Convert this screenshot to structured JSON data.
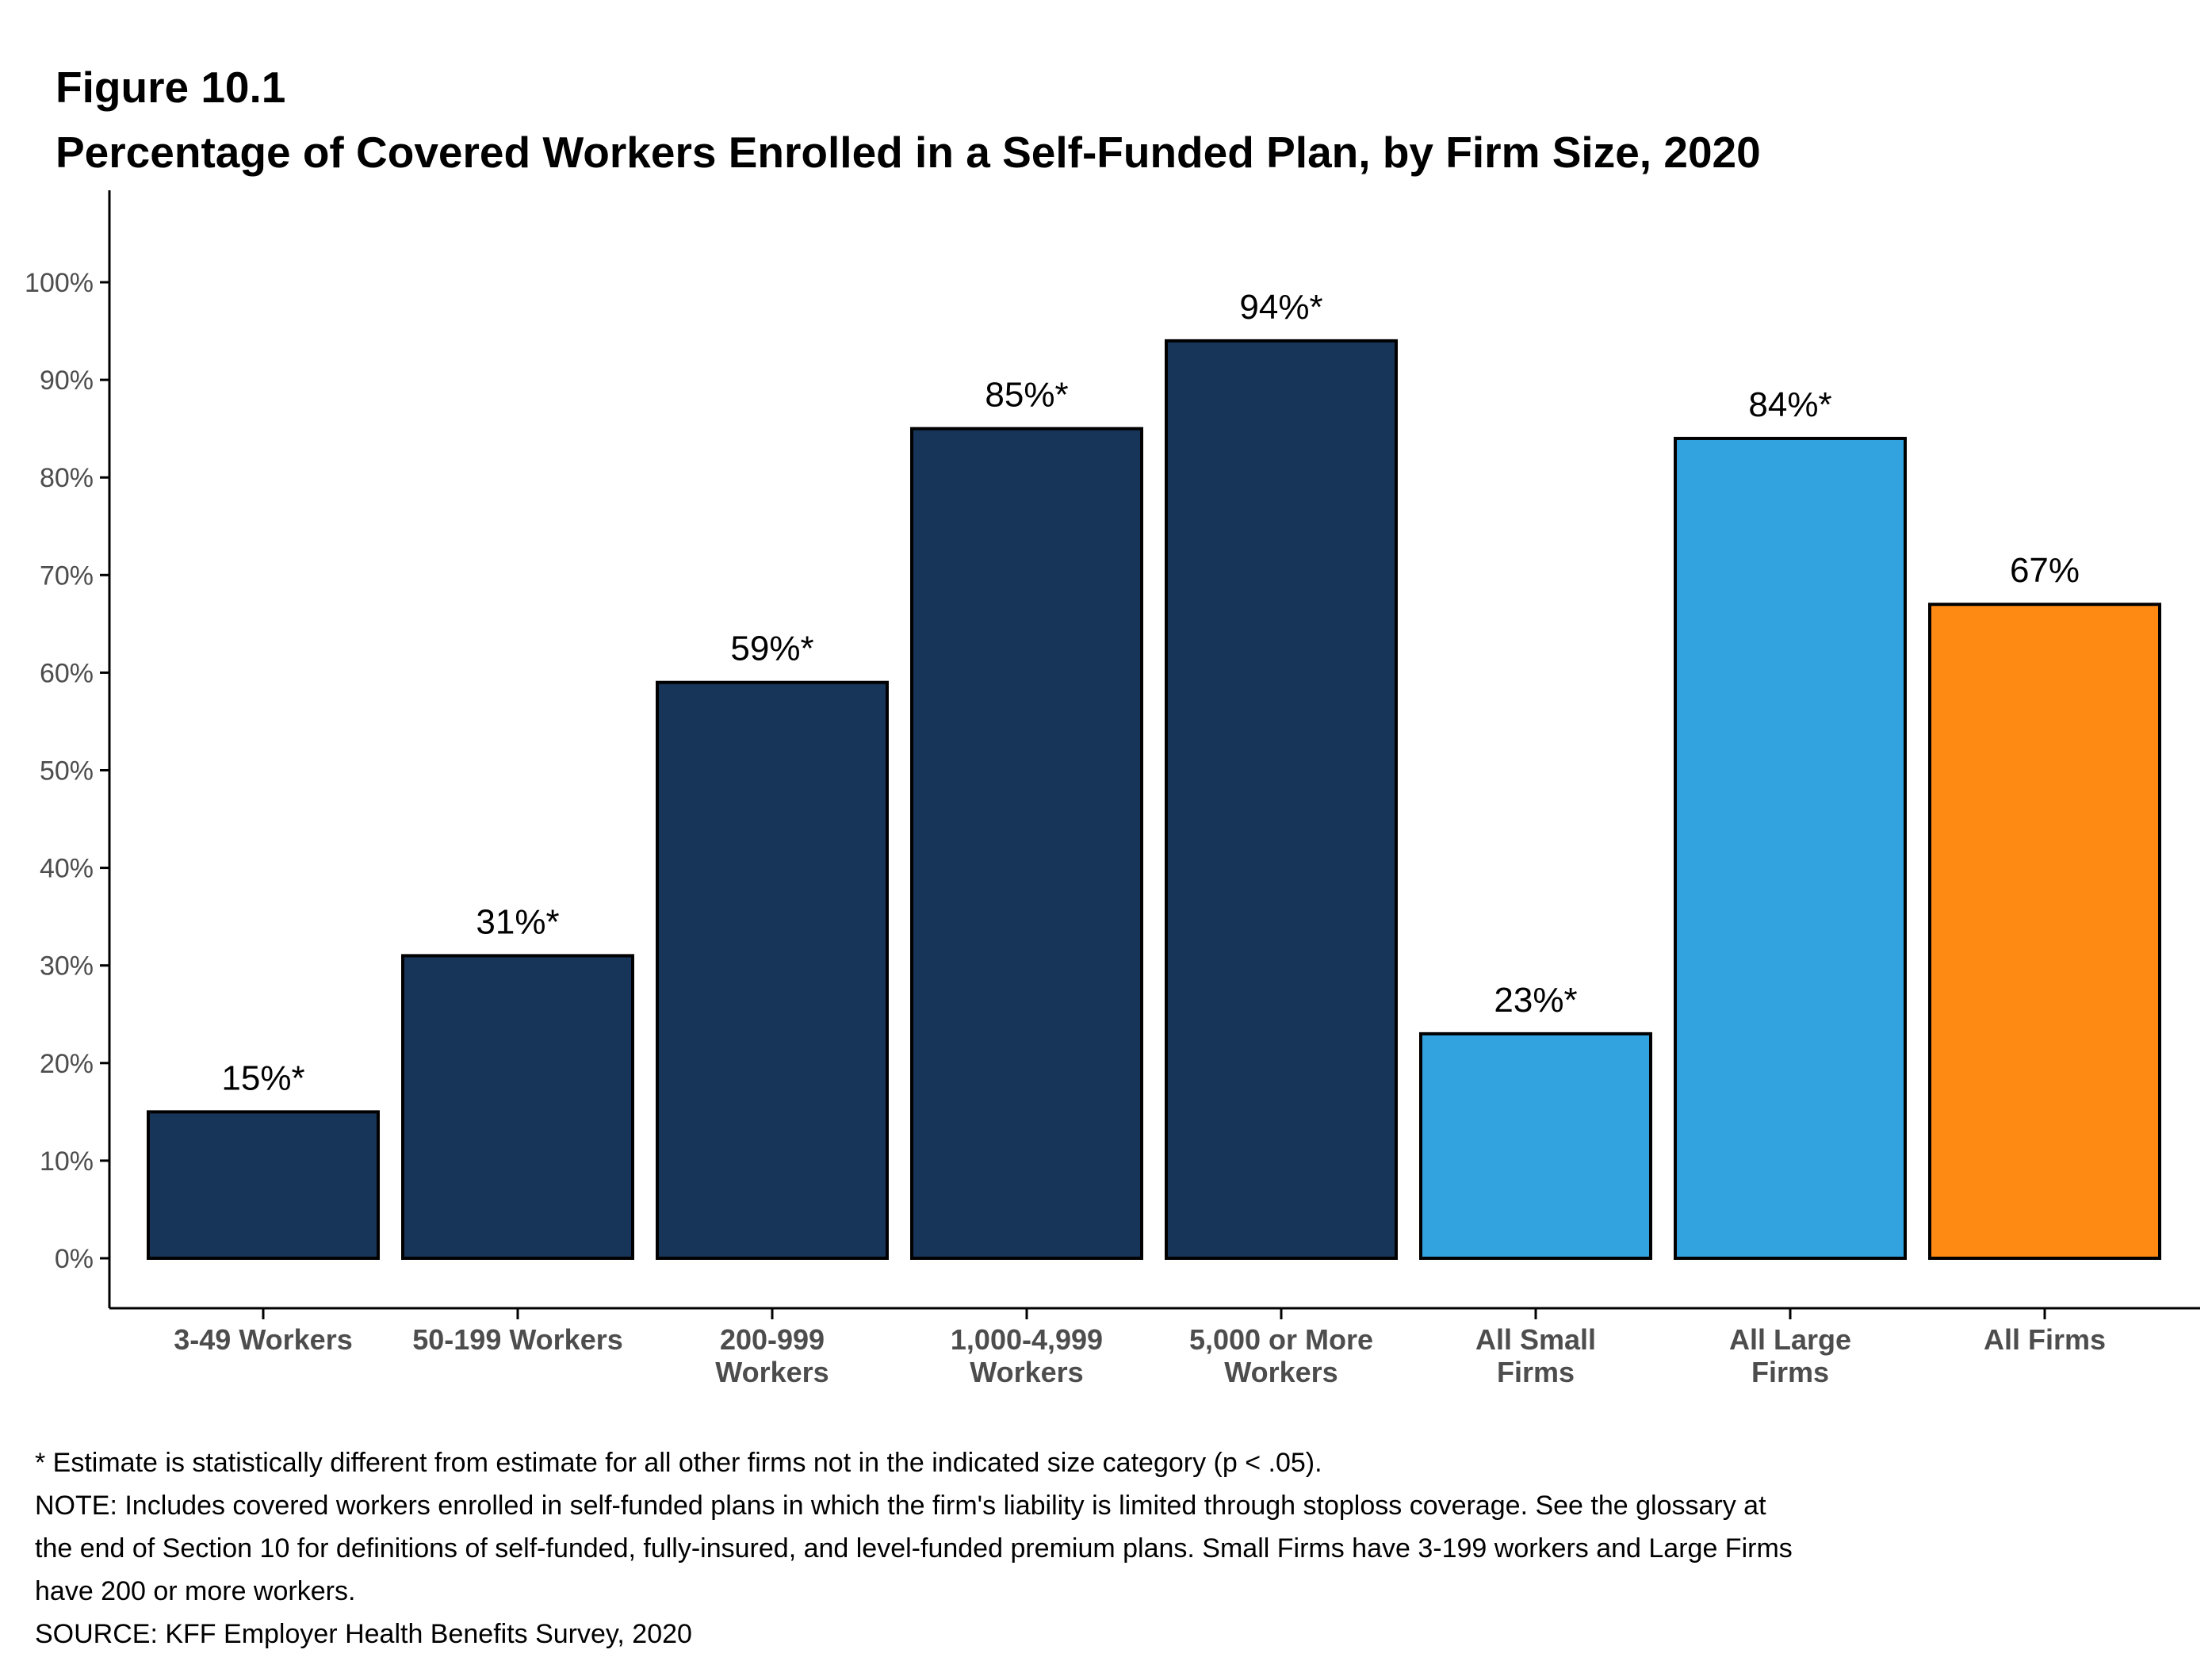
{
  "figure_label": "Figure 10.1",
  "title": "Percentage of Covered Workers Enrolled in a Self-Funded Plan, by Firm Size, 2020",
  "colors": {
    "dark_navy": "#163558",
    "light_blue": "#33a3e0",
    "orange": "#fe8913",
    "bar_outline": "#000000",
    "axis": "#000000",
    "tick_label": "#4d4d4d"
  },
  "chart_data": {
    "type": "bar",
    "categories": [
      [
        "3-49 Workers"
      ],
      [
        "50-199 Workers"
      ],
      [
        "200-999",
        "Workers"
      ],
      [
        "1,000-4,999",
        "Workers"
      ],
      [
        "5,000 or More",
        "Workers"
      ],
      [
        "All Small",
        "Firms"
      ],
      [
        "All Large",
        "Firms"
      ],
      [
        "All Firms"
      ]
    ],
    "values": [
      15,
      31,
      59,
      85,
      94,
      23,
      84,
      67
    ],
    "data_labels": [
      "15%*",
      "31%*",
      "59%*",
      "85%*",
      "94%*",
      "23%*",
      "84%*",
      "67%"
    ],
    "bar_colors": [
      "#163558",
      "#163558",
      "#163558",
      "#163558",
      "#163558",
      "#33a3e0",
      "#33a3e0",
      "#fe8913"
    ],
    "ylim": [
      0,
      100
    ],
    "yticks": [
      0,
      10,
      20,
      30,
      40,
      50,
      60,
      70,
      80,
      90,
      100
    ],
    "ytick_labels": [
      "0%",
      "10%",
      "20%",
      "30%",
      "40%",
      "50%",
      "60%",
      "70%",
      "80%",
      "90%",
      "100%"
    ],
    "grid": false,
    "legend": "none"
  },
  "footnotes": [
    "* Estimate is statistically different from estimate for all other firms not in the indicated size category (p < .05).",
    "NOTE: Includes covered workers enrolled in self-funded plans in which the firm's liability is limited through stoploss coverage. See the glossary at",
    "the end of Section 10 for definitions of self-funded, fully-insured, and level-funded premium plans. Small Firms have 3-199 workers and Large Firms",
    "have 200 or more workers.",
    "SOURCE: KFF Employer Health Benefits Survey, 2020"
  ]
}
